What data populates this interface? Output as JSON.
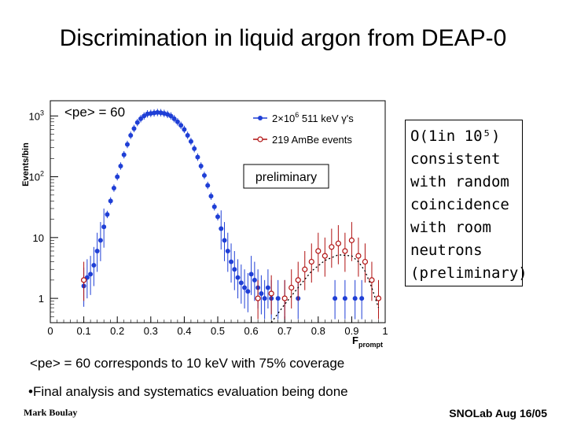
{
  "title": "Discrimination in liquid argon from DEAP-0",
  "note": {
    "lines": [
      "O(1in 10⁵)",
      "consistent",
      "with random",
      "coincidence",
      "with room",
      "neutrons",
      "(preliminary)"
    ]
  },
  "caption": "<pe> = 60 corresponds to 10 keV with 75% coverage",
  "bullet": "•Final analysis and systematics evaluation being done",
  "footer": {
    "left": "Mark Boulay",
    "right": "SNOLab Aug 16/05"
  },
  "colors": {
    "gamma": "#1f3fd6",
    "neutron": "#b01010",
    "fit": "#000000"
  },
  "chart_data": {
    "type": "scatter",
    "ylabel": "Events/bin",
    "xlabel": "F",
    "xlabel_sub": "prompt",
    "inset_label": "<pe> = 60",
    "annotation": "preliminary",
    "xlim": [
      0,
      1
    ],
    "ylim_log10": [
      -0.4,
      3.25
    ],
    "y_scale": "log",
    "xticks": [
      "0",
      "0.1",
      "0.2",
      "0.3",
      "0.4",
      "0.5",
      "0.6",
      "0.7",
      "0.8",
      "0.9",
      "1"
    ],
    "xtick_values": [
      0,
      0.1,
      0.2,
      0.3,
      0.4,
      0.5,
      0.6,
      0.7,
      0.8,
      0.9,
      1
    ],
    "yticks": [
      {
        "label": "10",
        "sup": "3",
        "log": 3
      },
      {
        "label": "10",
        "sup": "2",
        "log": 2
      },
      {
        "label": "10",
        "sup": "",
        "log": 1
      },
      {
        "label": "1",
        "sup": "",
        "log": 0
      }
    ],
    "legend": {
      "position": "top-right"
    },
    "series": [
      {
        "name": "2×10⁶ 511 keV γ's",
        "legend_prefix": "2×10",
        "legend_sup": "6",
        "legend_suffix": " 511 keV γ's",
        "marker": "dot",
        "color_key": "gamma",
        "x": [
          0.1,
          0.11,
          0.12,
          0.13,
          0.14,
          0.15,
          0.16,
          0.17,
          0.18,
          0.19,
          0.2,
          0.21,
          0.22,
          0.23,
          0.24,
          0.25,
          0.26,
          0.27,
          0.28,
          0.29,
          0.3,
          0.31,
          0.32,
          0.33,
          0.34,
          0.35,
          0.36,
          0.37,
          0.38,
          0.39,
          0.4,
          0.41,
          0.42,
          0.43,
          0.44,
          0.45,
          0.46,
          0.47,
          0.48,
          0.49,
          0.5,
          0.51,
          0.52,
          0.53,
          0.54,
          0.55,
          0.56,
          0.57,
          0.58,
          0.59,
          0.6,
          0.61,
          0.62,
          0.63,
          0.64,
          0.65,
          0.66,
          0.68,
          0.7,
          0.74,
          0.85,
          0.88,
          0.91,
          0.93
        ],
        "y": [
          1.6,
          2.2,
          2.5,
          3.5,
          6,
          9,
          15,
          24,
          40,
          65,
          100,
          150,
          230,
          340,
          480,
          620,
          780,
          900,
          1000,
          1080,
          1100,
          1120,
          1140,
          1130,
          1100,
          1060,
          1000,
          900,
          800,
          700,
          600,
          480,
          380,
          290,
          210,
          150,
          105,
          72,
          48,
          32,
          22,
          14,
          9,
          6,
          4,
          3,
          2.2,
          1.8,
          1.5,
          1.3,
          2.5,
          2,
          1.5,
          1.2,
          1,
          1.5,
          1,
          1,
          1,
          1,
          1,
          1,
          1,
          1
        ]
      },
      {
        "name": "219 AmBe events",
        "legend_prefix": "219 AmBe events",
        "legend_sup": "",
        "legend_suffix": "",
        "marker": "circle",
        "color_key": "neutron",
        "x": [
          0.1,
          0.62,
          0.66,
          0.7,
          0.72,
          0.74,
          0.76,
          0.78,
          0.8,
          0.82,
          0.84,
          0.86,
          0.88,
          0.9,
          0.92,
          0.94,
          0.96,
          0.98
        ],
        "y": [
          2,
          1,
          1.2,
          1,
          1.5,
          2,
          3,
          4,
          6,
          5,
          7,
          8,
          6,
          9,
          5,
          4,
          2,
          1
        ]
      },
      {
        "name": "",
        "marker": "none",
        "line_style": "dotted",
        "color_key": "fit",
        "x": [
          0.66,
          0.7,
          0.74,
          0.78,
          0.82,
          0.86,
          0.9,
          0.92,
          0.94,
          0.96,
          0.98
        ],
        "y": [
          0.4,
          0.8,
          1.5,
          2.8,
          4.2,
          5.2,
          5.0,
          4.0,
          2.8,
          1.5,
          0.7
        ]
      }
    ]
  }
}
